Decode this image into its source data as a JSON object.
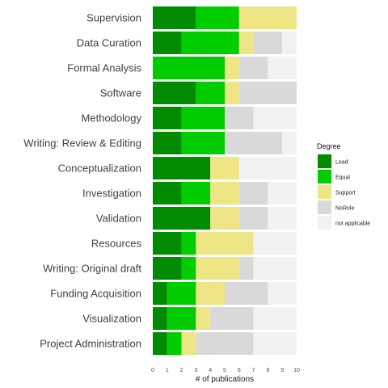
{
  "chart_data": {
    "type": "bar",
    "orientation": "horizontal",
    "stacked": true,
    "categories": [
      "Supervision",
      "Data Curation",
      "Formal Analysis",
      "Software",
      "Methodology",
      "Writing: Review & Editing",
      "Conceptualization",
      "Investigation",
      "Validation",
      "Resources",
      "Writing: Original draft",
      "Funding Acquisition",
      "Visualization",
      "Project Administration"
    ],
    "series": [
      {
        "name": "Lead",
        "color": "#008b00",
        "values": [
          3,
          2,
          0,
          3,
          2,
          2,
          4,
          2,
          4,
          2,
          2,
          1,
          1,
          1
        ]
      },
      {
        "name": "Equal",
        "color": "#00cd00",
        "values": [
          3,
          4,
          5,
          2,
          3,
          3,
          0,
          2,
          0,
          1,
          1,
          2,
          2,
          1
        ]
      },
      {
        "name": "Support",
        "color": "#eee685",
        "values": [
          4,
          1,
          1,
          1,
          0,
          0,
          2,
          2,
          2,
          4,
          3,
          2,
          1,
          1
        ]
      },
      {
        "name": "NoRole",
        "color": "#d9d9d9",
        "values": [
          0,
          2,
          2,
          4,
          2,
          4,
          0,
          2,
          2,
          0,
          1,
          3,
          3,
          4
        ]
      },
      {
        "name": "not applicable",
        "color": "#f2f2f2",
        "values": [
          0,
          1,
          2,
          0,
          3,
          1,
          4,
          2,
          2,
          3,
          3,
          2,
          3,
          3
        ]
      }
    ],
    "xlabel": "# of publications",
    "ylabel": "",
    "xlim": [
      0,
      10
    ],
    "xticks": [
      0,
      1,
      2,
      3,
      4,
      5,
      6,
      7,
      8,
      9,
      10
    ],
    "legend_title": "Degree",
    "legend_position": "right",
    "grid": false
  }
}
